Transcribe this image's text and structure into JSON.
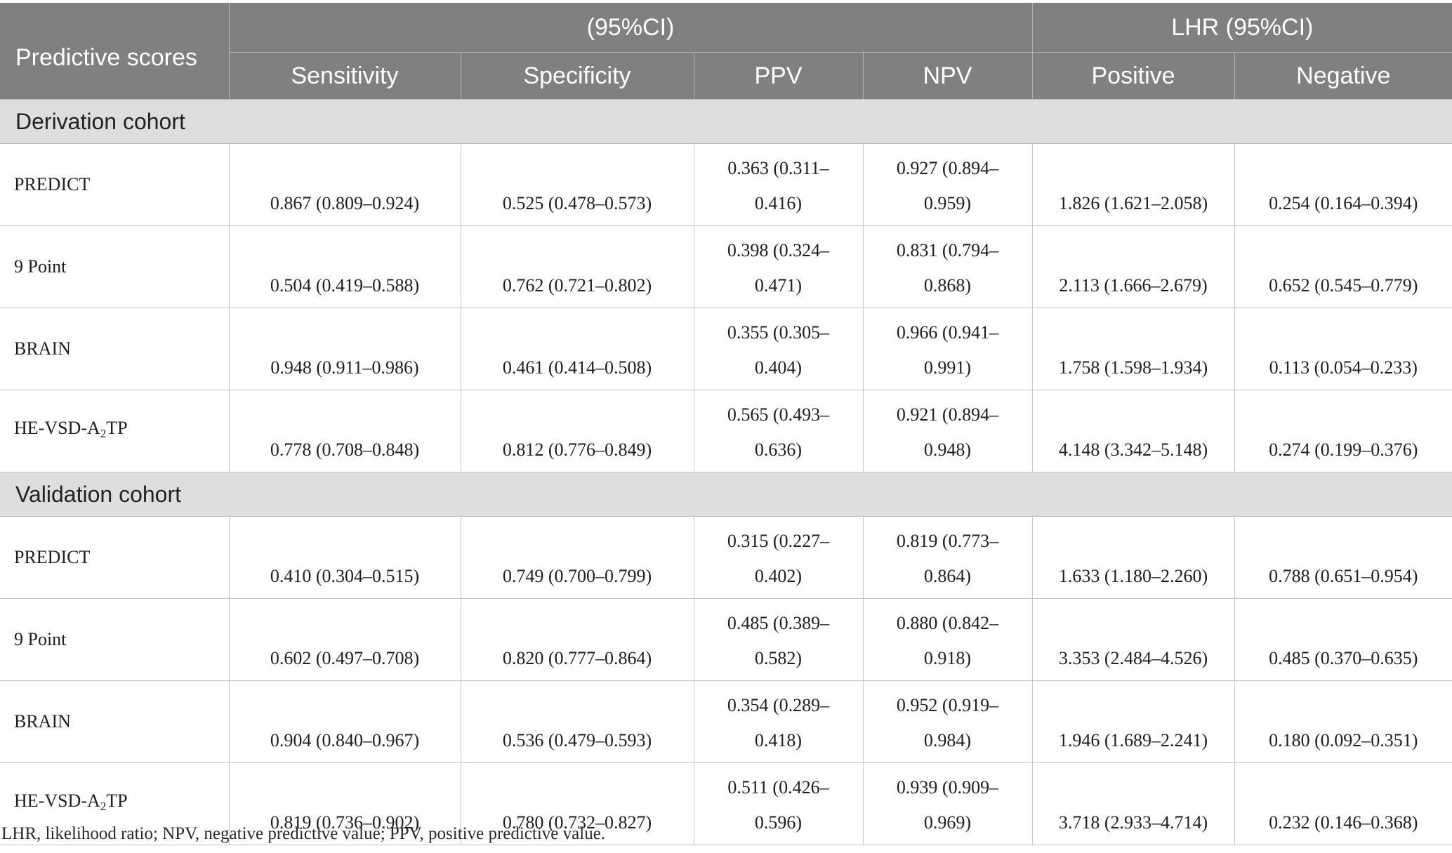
{
  "header": {
    "col0": "Predictive scores",
    "group1": "(95%CI)",
    "group2": "LHR (95%CI)",
    "sensitivity": "Sensitivity",
    "specificity": "Specificity",
    "ppv": "PPV",
    "npv": "NPV",
    "positive": "Positive",
    "negative": "Negative"
  },
  "sections": [
    {
      "title": "Derivation cohort",
      "rows": [
        {
          "name": "PREDICT",
          "sensitivity": "0.867 (0.809–0.924)",
          "specificity": "0.525 (0.478–0.573)",
          "ppv": "0.363 (0.311–0.416)",
          "npv": "0.927 (0.894–0.959)",
          "positive": "1.826 (1.621–2.058)",
          "negative": "0.254 (0.164–0.394)"
        },
        {
          "name": "9 Point",
          "sensitivity": "0.504 (0.419–0.588)",
          "specificity": "0.762 (0.721–0.802)",
          "ppv": "0.398 (0.324–0.471)",
          "npv": "0.831 (0.794–0.868)",
          "positive": "2.113 (1.666–2.679)",
          "negative": "0.652 (0.545–0.779)"
        },
        {
          "name": "BRAIN",
          "sensitivity": "0.948 (0.911–0.986)",
          "specificity": "0.461 (0.414–0.508)",
          "ppv": "0.355 (0.305–0.404)",
          "npv": "0.966 (0.941–0.991)",
          "positive": "1.758 (1.598–1.934)",
          "negative": "0.113 (0.054–0.233)"
        },
        {
          "name_pre": "HE-VSD-A",
          "name_sub": "2",
          "name_post": "TP",
          "sensitivity": "0.778 (0.708–0.848)",
          "specificity": "0.812 (0.776–0.849)",
          "ppv": "0.565 (0.493–0.636)",
          "npv": "0.921 (0.894–0.948)",
          "positive": "4.148 (3.342–5.148)",
          "negative": "0.274 (0.199–0.376)"
        }
      ]
    },
    {
      "title": "Validation cohort",
      "rows": [
        {
          "name": "PREDICT",
          "sensitivity": "0.410 (0.304–0.515)",
          "specificity": "0.749 (0.700–0.799)",
          "ppv": "0.315 (0.227–0.402)",
          "npv": "0.819 (0.773–0.864)",
          "positive": "1.633 (1.180–2.260)",
          "negative": "0.788 (0.651–0.954)"
        },
        {
          "name": "9 Point",
          "sensitivity": "0.602 (0.497–0.708)",
          "specificity": "0.820 (0.777–0.864)",
          "ppv": "0.485 (0.389–0.582)",
          "npv": "0.880 (0.842–0.918)",
          "positive": "3.353 (2.484–4.526)",
          "negative": "0.485 (0.370–0.635)"
        },
        {
          "name": "BRAIN",
          "sensitivity": "0.904 (0.840–0.967)",
          "specificity": "0.536 (0.479–0.593)",
          "ppv": "0.354 (0.289–0.418)",
          "npv": "0.952 (0.919–0.984)",
          "positive": "1.946 (1.689–2.241)",
          "negative": "0.180 (0.092–0.351)"
        },
        {
          "name_pre": "HE-VSD-A",
          "name_sub": "2",
          "name_post": "TP",
          "sensitivity": "0.819 (0.736–0.902)",
          "specificity": "0.780 (0.732–0.827)",
          "ppv": "0.511 (0.426–0.596)",
          "npv": "0.939 (0.909–0.969)",
          "positive": "3.718 (2.933–4.714)",
          "negative": "0.232 (0.146–0.368)"
        }
      ]
    }
  ],
  "footnote": "LHR, likelihood ratio; NPV, negative predictive value; PPV, positive predictive value."
}
